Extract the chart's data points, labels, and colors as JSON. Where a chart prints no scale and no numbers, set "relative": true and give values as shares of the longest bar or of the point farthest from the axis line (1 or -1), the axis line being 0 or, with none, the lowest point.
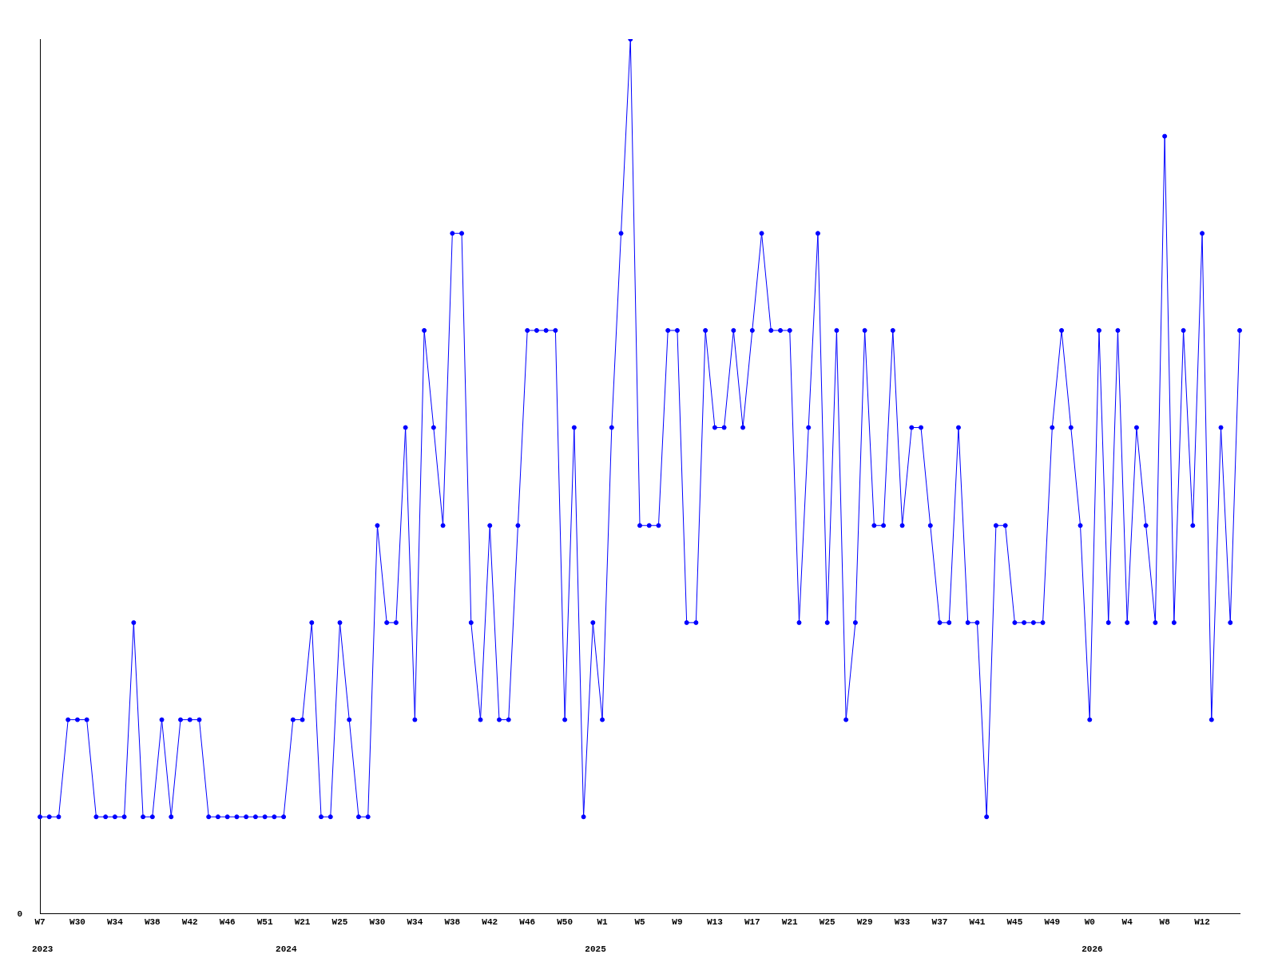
{
  "chart_data": {
    "type": "line",
    "relative": true,
    "marker": "circle",
    "line_style": "solid",
    "grid": false,
    "legend": false,
    "categories": [
      "W7",
      null,
      null,
      null,
      "W30",
      null,
      null,
      null,
      "W34",
      null,
      null,
      null,
      "W38",
      null,
      null,
      null,
      "W42",
      null,
      null,
      null,
      "W46",
      null,
      null,
      null,
      "W51",
      null,
      null,
      null,
      "W21",
      null,
      null,
      null,
      "W25",
      null,
      null,
      null,
      "W30",
      null,
      null,
      null,
      "W34",
      null,
      null,
      null,
      "W38",
      null,
      null,
      null,
      "W42",
      null,
      null,
      null,
      "W46",
      null,
      null,
      null,
      "W50",
      null,
      null,
      null,
      "W1",
      null,
      null,
      null,
      "W5",
      null,
      null,
      null,
      "W9",
      null,
      null,
      null,
      "W13",
      null,
      null,
      null,
      "W17",
      null,
      null,
      null,
      "W21",
      null,
      null,
      null,
      "W25",
      null,
      null,
      null,
      "W29",
      null,
      null,
      null,
      "W33",
      null,
      null,
      null,
      "W37",
      null,
      null,
      null,
      "W41",
      null,
      null,
      null,
      "W45",
      null,
      null,
      null,
      "W49",
      null,
      null,
      null,
      "W0",
      null,
      null,
      null,
      "W4",
      null,
      null,
      null,
      "W8",
      null,
      null,
      null,
      "W12",
      null,
      null,
      null,
      null
    ],
    "series": [
      {
        "color": "#0000ff",
        "values": [
          0.111,
          0.111,
          0.111,
          0.222,
          0.222,
          0.222,
          0.111,
          0.111,
          0.111,
          0.111,
          0.333,
          0.111,
          0.111,
          0.222,
          0.111,
          0.222,
          0.222,
          0.222,
          0.111,
          0.111,
          0.111,
          0.111,
          0.111,
          0.111,
          0.111,
          0.111,
          0.111,
          0.222,
          0.222,
          0.333,
          0.111,
          0.111,
          0.333,
          0.222,
          0.111,
          0.111,
          0.444,
          0.333,
          0.333,
          0.556,
          0.222,
          0.667,
          0.556,
          0.444,
          0.778,
          0.778,
          0.333,
          0.222,
          0.444,
          0.222,
          0.222,
          0.444,
          0.667,
          0.667,
          0.667,
          0.667,
          0.222,
          0.556,
          0.111,
          0.333,
          0.222,
          0.556,
          0.778,
          1,
          0.444,
          0.444,
          0.444,
          0.667,
          0.667,
          0.333,
          0.333,
          0.667,
          0.556,
          0.556,
          0.667,
          0.556,
          0.667,
          0.778,
          0.667,
          0.667,
          0.667,
          0.333,
          0.556,
          0.778,
          0.333,
          0.667,
          0.222,
          0.333,
          0.667,
          0.444,
          0.444,
          0.667,
          0.444,
          0.556,
          0.556,
          0.444,
          0.333,
          0.333,
          0.556,
          0.333,
          0.333,
          0.111,
          0.444,
          0.444,
          0.333,
          0.333,
          0.333,
          0.333,
          0.556,
          0.667,
          0.556,
          0.444,
          0.222,
          0.667,
          0.333,
          0.667,
          0.333,
          0.556,
          0.444,
          0.333,
          0.889,
          0.333,
          0.667,
          0.444,
          0.778,
          0.222,
          0.556,
          0.333,
          0.667
        ]
      }
    ],
    "annotations": [
      "0",
      "2023",
      "2024",
      "2025",
      "2026"
    ]
  }
}
